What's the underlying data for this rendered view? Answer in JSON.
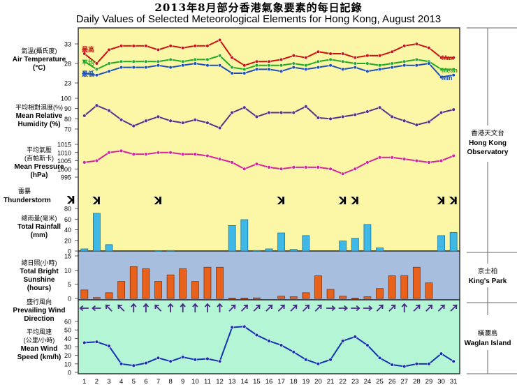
{
  "title_zh": "2013年8月部分香港氣象要素的每日記錄",
  "title_en": "Daily Values of Selected Meteorological Elements for Hong Kong, August 2013",
  "panels": {
    "temperature": {
      "label_zh": "氣溫(攝氏度)",
      "label_en1": "Air Temperature",
      "label_en2": "(°C)",
      "ticks": [
        "33",
        "28",
        "23"
      ],
      "series_labels": {
        "max_zh": "最高",
        "mean_zh": "平均",
        "min_zh": "最低",
        "max_en": "Max",
        "mean_en": "Mean",
        "min_en": "Min"
      },
      "colors": {
        "max": "#cc1111",
        "mean": "#22aa22",
        "min": "#1a50b8"
      }
    },
    "humidity": {
      "label_zh": "平均相對濕度(%)",
      "label_en1": "Mean Relative",
      "label_en2": "Humidity (%)",
      "ticks": [
        "100",
        "90",
        "80",
        "70"
      ],
      "color": "#5a2f8a"
    },
    "pressure": {
      "label_zh": "平均氣壓",
      "label_zh2": "(百帕斯卡)",
      "label_en1": "Mean Pressure",
      "label_en2": "(hPa)",
      "ticks": [
        "1015",
        "1010",
        "1005",
        "1000",
        "995"
      ],
      "color": "#d6259a"
    },
    "thunder": {
      "label_zh": "雷暴",
      "label_en": "Thunderstorm",
      "symbol": "ꓘ"
    },
    "rainfall": {
      "label_zh": "總雨量(毫米)",
      "label_en1": "Total Rainfall",
      "label_en2": "(mm)",
      "ticks": [
        "80",
        "60",
        "40",
        "20",
        "0"
      ],
      "color": "#3fb8e6"
    },
    "sunshine": {
      "label_zh": "總日照(小時)",
      "label_en1": "Total Bright",
      "label_en2": "Sunshine",
      "label_en3": "(hours)",
      "ticks": [
        "15",
        "10",
        "5",
        "0"
      ],
      "color": "#e8621c"
    },
    "wind_dir": {
      "label_zh": "盛行風向",
      "label_en1": "Prevailing Wind",
      "label_en2": "Direction"
    },
    "wind_speed": {
      "label_zh": "平均風速",
      "label_zh2": "(公里/小時)",
      "label_en1": "Mean Wind",
      "label_en2": "Speed (km/h)",
      "ticks": [
        "60",
        "50",
        "40",
        "30",
        "20",
        "10",
        "0"
      ],
      "color": "#1530b0"
    }
  },
  "stations": {
    "hko_zh": "香港天文台",
    "hko_en1": "Hong Kong",
    "hko_en2": "Observatory",
    "kp_zh": "京士柏",
    "kp_en": "King's Park",
    "wi_zh": "橫瀾島",
    "wi_en": "Waglan Island"
  },
  "colors": {
    "upper_bg": "#fbf7a6",
    "sun_bg": "#a7bedf",
    "wind_bg": "#b4f5d6",
    "frame": "#333333"
  },
  "chart_data": {
    "type": "line",
    "x": [
      1,
      2,
      3,
      4,
      5,
      6,
      7,
      8,
      9,
      10,
      11,
      12,
      13,
      14,
      15,
      16,
      17,
      18,
      19,
      20,
      21,
      22,
      23,
      24,
      25,
      26,
      27,
      28,
      29,
      30,
      31
    ],
    "x_tick_labels": [
      "1",
      "2",
      "3",
      "4",
      "5",
      "6",
      "7",
      "8",
      "9",
      "10",
      "11",
      "12",
      "13",
      "14",
      "15",
      "16",
      "17",
      "18",
      "19",
      "20",
      "21",
      "22",
      "23",
      "24",
      "25",
      "26",
      "27",
      "28",
      "29",
      "30",
      "31"
    ],
    "temperature_ylim": [
      23,
      33
    ],
    "temp_max": [
      30.5,
      28.0,
      31.5,
      32.5,
      32.5,
      32.5,
      31.5,
      32.5,
      32.0,
      32.5,
      32.5,
      34.0,
      29.5,
      27.5,
      28.5,
      28.5,
      29.0,
      30.0,
      29.5,
      31.0,
      30.5,
      30.5,
      29.5,
      30.0,
      30.0,
      31.0,
      32.5,
      33.0,
      32.0,
      29.5,
      29.5
    ],
    "temp_mean": [
      28.5,
      26.5,
      28.0,
      28.5,
      28.5,
      28.5,
      28.5,
      29.0,
      28.5,
      29.0,
      29.0,
      30.0,
      27.0,
      26.5,
      27.5,
      27.5,
      27.5,
      28.0,
      27.5,
      28.5,
      29.0,
      28.5,
      28.0,
      28.0,
      27.5,
      28.0,
      28.5,
      29.0,
      28.5,
      26.5,
      26.5
    ],
    "temp_min": [
      25.5,
      25.0,
      26.0,
      27.0,
      27.0,
      27.0,
      27.5,
      27.0,
      27.5,
      28.0,
      27.5,
      27.5,
      25.5,
      25.5,
      26.5,
      26.5,
      26.0,
      27.0,
      26.5,
      27.0,
      27.5,
      26.5,
      27.0,
      26.0,
      26.5,
      27.0,
      27.5,
      27.5,
      28.0,
      24.5,
      25.0
    ],
    "humidity_ylim": [
      70,
      100
    ],
    "humidity": [
      83,
      93,
      88,
      79,
      73,
      78,
      82,
      78,
      76,
      79,
      76,
      71,
      86,
      91,
      82,
      86,
      86,
      86,
      92,
      81,
      80,
      82,
      84,
      87,
      91,
      82,
      78,
      74,
      77,
      86,
      89
    ],
    "pressure_ylim": [
      995,
      1015
    ],
    "pressure": [
      1004,
      1005,
      1010,
      1011,
      1009,
      1009,
      1010,
      1010,
      1009,
      1009,
      1008,
      1006,
      1004,
      1000,
      1003,
      1001,
      1000,
      1001,
      1001,
      1001,
      1000,
      997,
      1000,
      1004,
      1007,
      1007,
      1006,
      1005,
      1004,
      1005,
      1008
    ],
    "thunderstorm_days": [
      2,
      7,
      17,
      22,
      23,
      30,
      31
    ],
    "rainfall_ylim": [
      0,
      80
    ],
    "rainfall": [
      4,
      71,
      12,
      0,
      0,
      0,
      0.5,
      1,
      0,
      0,
      0,
      0,
      48,
      59,
      1,
      4,
      34,
      3,
      29,
      0,
      0,
      19,
      24,
      50,
      6,
      0,
      0,
      0,
      0,
      29,
      35
    ],
    "sunshine_ylim": [
      0,
      15
    ],
    "sunshine": [
      3.0,
      0.3,
      2.0,
      6.0,
      11.2,
      10.5,
      6.0,
      8.3,
      10.5,
      6.0,
      11.0,
      11.0,
      0.1,
      0.1,
      0.2,
      0,
      0.8,
      0.6,
      2.0,
      8.0,
      3.2,
      0.8,
      0.1,
      0.6,
      3.5,
      8.0,
      8.0,
      11.0,
      5.5,
      0,
      0
    ],
    "wind_direction_deg": [
      270,
      270,
      315,
      315,
      0,
      0,
      315,
      0,
      0,
      0,
      0,
      0,
      45,
      45,
      45,
      45,
      45,
      45,
      45,
      45,
      90,
      90,
      90,
      90,
      45,
      45,
      0,
      45,
      45,
      45,
      45
    ],
    "wind_speed_ylim": [
      0,
      60
    ],
    "wind_speed": [
      35,
      36,
      31,
      10,
      8,
      11,
      17,
      13,
      18,
      15,
      16,
      13,
      53,
      54,
      44,
      37,
      32,
      24,
      15,
      10,
      15,
      37,
      42,
      32,
      17,
      9,
      7,
      10,
      10,
      22,
      13
    ]
  }
}
